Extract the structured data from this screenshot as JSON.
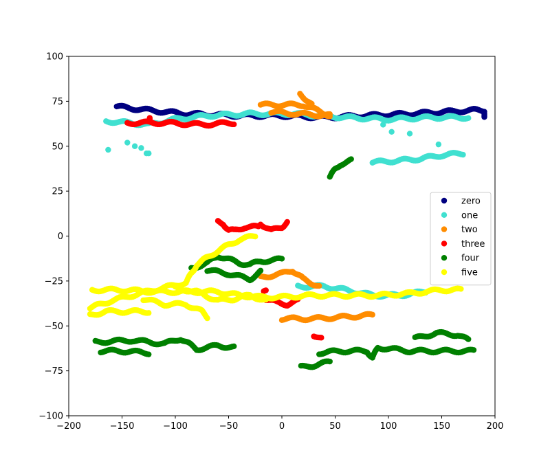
{
  "chart_data": {
    "type": "scatter",
    "title": "",
    "xlabel": "",
    "ylabel": "",
    "xlim": [
      -200,
      200
    ],
    "ylim": [
      -100,
      100
    ],
    "xticks": [
      -200,
      -150,
      -100,
      -50,
      0,
      50,
      100,
      150,
      200
    ],
    "yticks": [
      -100,
      -75,
      -50,
      -25,
      0,
      25,
      50,
      75,
      100
    ],
    "grid": false,
    "legend_position": "right",
    "series": [
      {
        "name": "zero",
        "color": "#000080",
        "segments": [
          [
            [
              -155,
              72
            ],
            [
              -125,
              70
            ],
            [
              -90,
              68
            ],
            [
              -40,
              67
            ],
            [
              0,
              67
            ],
            [
              40,
              66
            ],
            [
              80,
              67
            ],
            [
              120,
              68
            ],
            [
              150,
              69
            ],
            [
              180,
              70
            ],
            [
              190,
              70
            ],
            [
              190,
              66
            ]
          ]
        ],
        "points": []
      },
      {
        "name": "one",
        "color": "#40e0d0",
        "segments": [
          [
            [
              -165,
              64
            ],
            [
              -125,
              62
            ],
            [
              -100,
              65
            ],
            [
              -70,
              67
            ],
            [
              -30,
              68
            ],
            [
              10,
              68
            ],
            [
              60,
              66
            ],
            [
              100,
              65
            ],
            [
              140,
              66
            ],
            [
              175,
              66
            ]
          ],
          [
            [
              85,
              41
            ],
            [
              110,
              42
            ],
            [
              130,
              43
            ],
            [
              150,
              45
            ],
            [
              170,
              46
            ]
          ],
          [
            [
              15,
              -28
            ],
            [
              40,
              -28
            ],
            [
              60,
              -30
            ],
            [
              85,
              -33
            ],
            [
              110,
              -33
            ],
            [
              135,
              -31
            ]
          ]
        ],
        "points": [
          [
            -163,
            48
          ],
          [
            -145,
            52
          ],
          [
            -138,
            50
          ],
          [
            -132,
            49
          ],
          [
            -127,
            46
          ],
          [
            -125,
            46
          ],
          [
            95,
            62
          ],
          [
            103,
            58
          ],
          [
            120,
            57
          ],
          [
            147,
            51
          ]
        ]
      },
      {
        "name": "two",
        "color": "#ff8c00",
        "segments": [
          [
            [
              -20,
              73
            ],
            [
              0,
              73
            ],
            [
              20,
              73
            ],
            [
              45,
              67
            ]
          ],
          [
            [
              17,
              79
            ],
            [
              25,
              75
            ],
            [
              28,
              73
            ]
          ],
          [
            [
              -10,
              69
            ],
            [
              15,
              68
            ],
            [
              45,
              67
            ]
          ],
          [
            [
              -20,
              -23
            ],
            [
              0,
              -21
            ],
            [
              10,
              -19
            ],
            [
              20,
              -24
            ],
            [
              35,
              -28
            ]
          ],
          [
            [
              0,
              -46
            ],
            [
              30,
              -46
            ],
            [
              60,
              -45
            ],
            [
              85,
              -44
            ]
          ]
        ],
        "points": []
      },
      {
        "name": "three",
        "color": "#ff0000",
        "segments": [
          [
            [
              -145,
              63
            ],
            [
              -110,
              63
            ],
            [
              -75,
              62
            ],
            [
              -45,
              63
            ]
          ],
          [
            [
              -124,
              66
            ],
            [
              -124,
              63
            ]
          ],
          [
            [
              -60,
              8
            ],
            [
              -55,
              7
            ],
            [
              -50,
              3
            ],
            [
              -45,
              3
            ],
            [
              -35,
              5
            ],
            [
              -22,
              5
            ],
            [
              -20,
              7
            ],
            [
              -10,
              3
            ],
            [
              0,
              5
            ],
            [
              5,
              8
            ]
          ],
          [
            [
              -15,
              -35
            ],
            [
              -5,
              -37
            ],
            [
              5,
              -38
            ],
            [
              15,
              -36
            ]
          ],
          [
            [
              -15,
              -31
            ],
            [
              -17,
              -31
            ]
          ],
          [
            [
              30,
              -55
            ],
            [
              37,
              -57
            ]
          ]
        ],
        "points": []
      },
      {
        "name": "four",
        "color": "#008000",
        "segments": [
          [
            [
              45,
              33
            ],
            [
              50,
              37
            ],
            [
              55,
              40
            ],
            [
              65,
              42
            ]
          ],
          [
            [
              -85,
              -18
            ],
            [
              -70,
              -15
            ],
            [
              -60,
              -11
            ],
            [
              -50,
              -13
            ],
            [
              -40,
              -15
            ],
            [
              -30,
              -16
            ],
            [
              -20,
              -14
            ],
            [
              0,
              -13
            ]
          ],
          [
            [
              -70,
              -19
            ],
            [
              -50,
              -21
            ],
            [
              -30,
              -24
            ],
            [
              -20,
              -20
            ]
          ],
          [
            [
              -175,
              -59
            ],
            [
              -140,
              -58
            ],
            [
              -110,
              -60
            ],
            [
              -95,
              -57
            ],
            [
              -80,
              -63
            ],
            [
              -60,
              -61
            ],
            [
              -45,
              -62
            ]
          ],
          [
            [
              -170,
              -64
            ],
            [
              -150,
              -64
            ],
            [
              -125,
              -65
            ]
          ],
          [
            [
              18,
              -73
            ],
            [
              30,
              -72
            ],
            [
              45,
              -70
            ]
          ],
          [
            [
              35,
              -65
            ],
            [
              55,
              -64
            ],
            [
              80,
              -64
            ],
            [
              85,
              -68
            ],
            [
              90,
              -62
            ],
            [
              120,
              -64
            ],
            [
              150,
              -64
            ],
            [
              180,
              -64
            ]
          ],
          [
            [
              125,
              -57
            ],
            [
              145,
              -54
            ],
            [
              165,
              -55
            ],
            [
              175,
              -58
            ]
          ]
        ],
        "points": []
      },
      {
        "name": "five",
        "color": "#ffff00",
        "segments": [
          [
            [
              -178,
              -30
            ],
            [
              -150,
              -30
            ],
            [
              -120,
              -31
            ],
            [
              -90,
              -31
            ],
            [
              -60,
              -31
            ],
            [
              -40,
              -33
            ],
            [
              -20,
              -34
            ],
            [
              0,
              -34
            ],
            [
              30,
              -33
            ],
            [
              60,
              -33
            ],
            [
              90,
              -33
            ],
            [
              120,
              -32
            ],
            [
              150,
              -30
            ],
            [
              168,
              -30
            ]
          ],
          [
            [
              -180,
              -40
            ],
            [
              -160,
              -36
            ],
            [
              -140,
              -33
            ],
            [
              -120,
              -30
            ],
            [
              -105,
              -28
            ],
            [
              -90,
              -26
            ],
            [
              -80,
              -16
            ],
            [
              -65,
              -10
            ],
            [
              -50,
              -5
            ],
            [
              -40,
              -2
            ],
            [
              -25,
              0
            ]
          ],
          [
            [
              -180,
              -44
            ],
            [
              -165,
              -42
            ],
            [
              -140,
              -42
            ],
            [
              -125,
              -42
            ]
          ],
          [
            [
              -130,
              -35
            ],
            [
              -110,
              -38
            ],
            [
              -90,
              -38
            ],
            [
              -75,
              -42
            ],
            [
              -70,
              -45
            ]
          ],
          [
            [
              -100,
              -29
            ],
            [
              -80,
              -31
            ],
            [
              -60,
              -36
            ],
            [
              -45,
              -35
            ],
            [
              -30,
              -33
            ],
            [
              -15,
              -36
            ]
          ]
        ],
        "points": []
      }
    ]
  }
}
